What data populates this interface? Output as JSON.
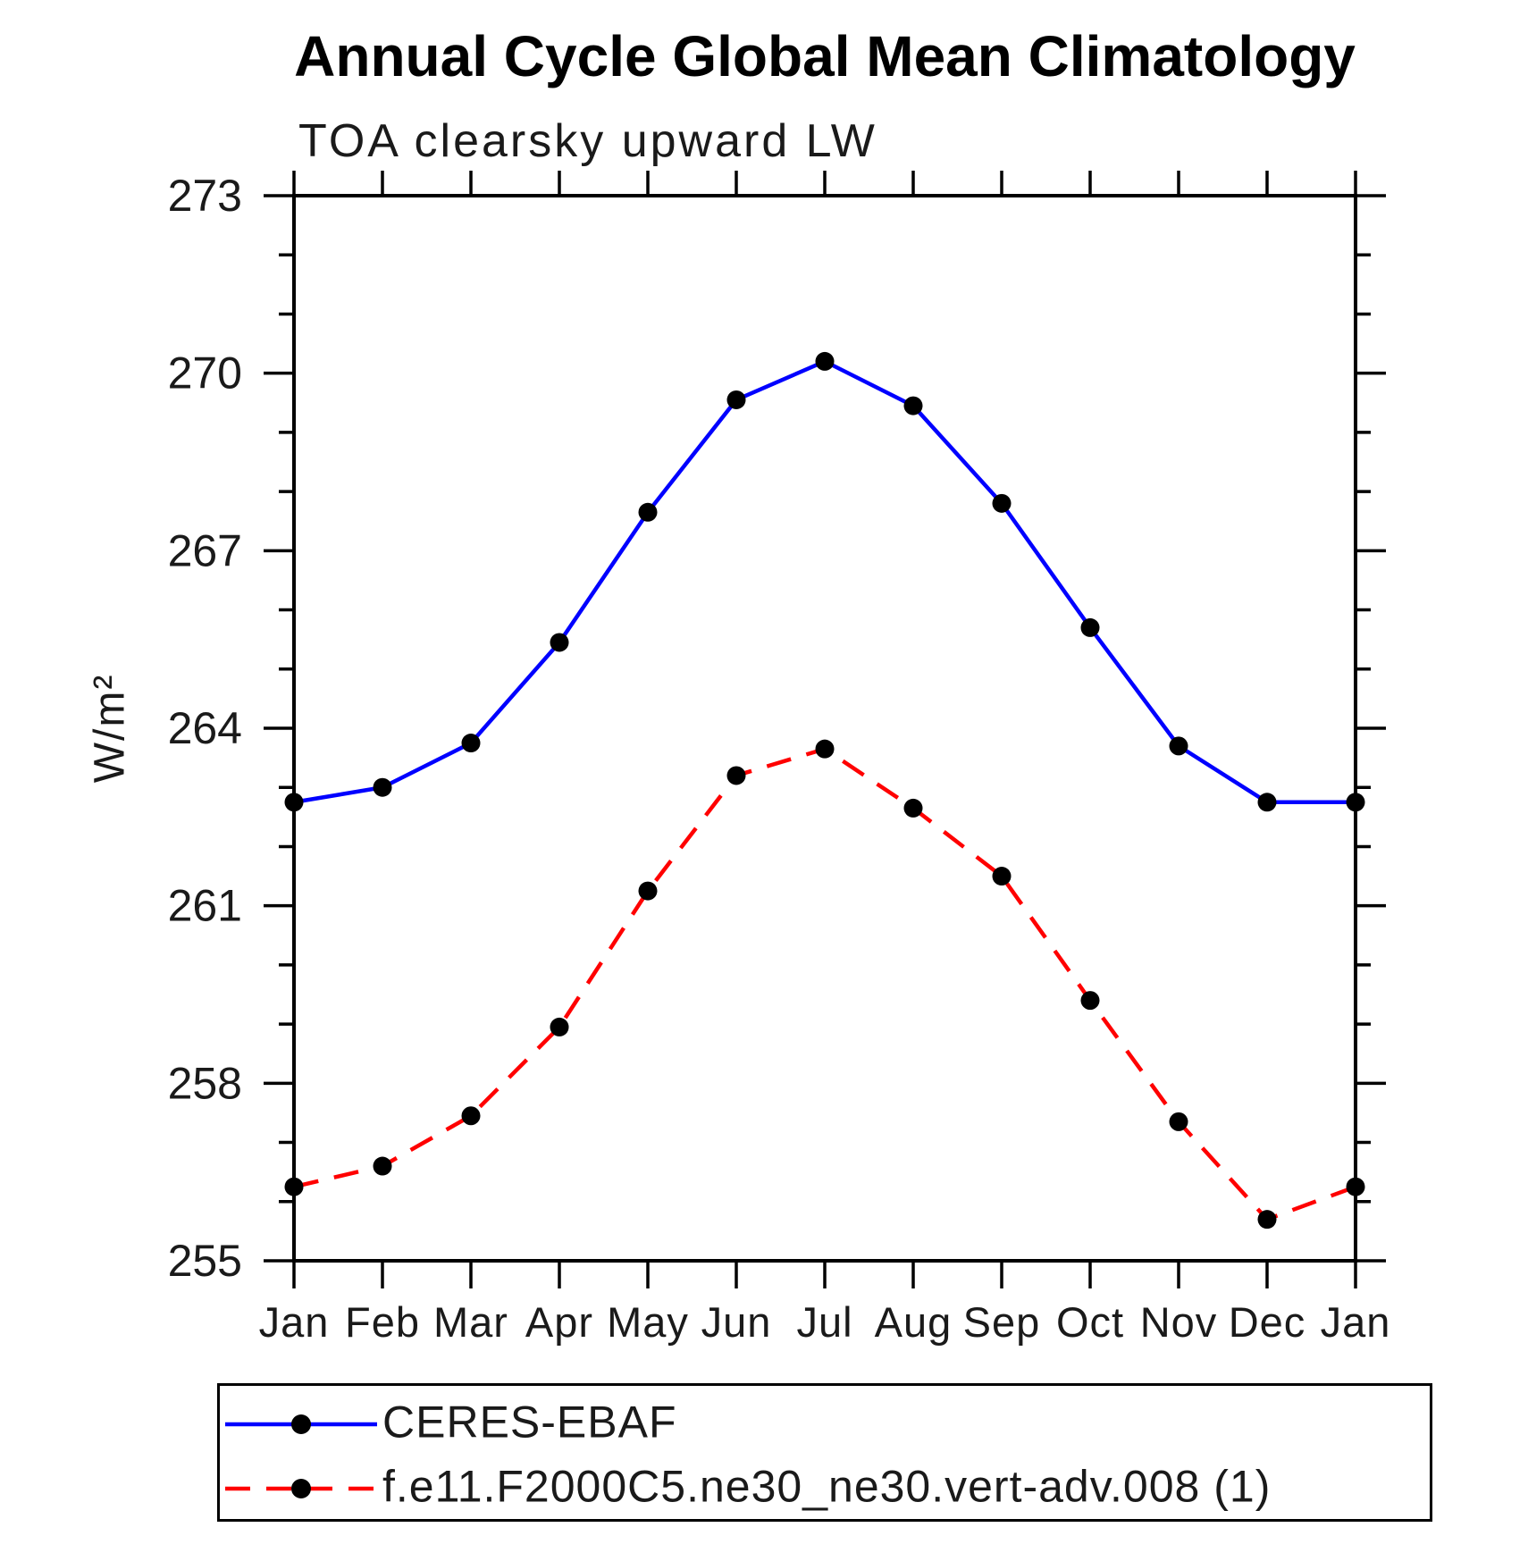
{
  "chart_data": {
    "type": "line",
    "title": "Annual Cycle Global Mean Climatology",
    "subtitle": "TOA clearsky upward LW",
    "ylabel": "W/m²",
    "categories": [
      "Jan",
      "Feb",
      "Mar",
      "Apr",
      "May",
      "Jun",
      "Jul",
      "Aug",
      "Sep",
      "Oct",
      "Nov",
      "Dec",
      "Jan"
    ],
    "ylim": [
      255,
      273
    ],
    "yticks_major": [
      255,
      258,
      261,
      264,
      267,
      270,
      273
    ],
    "minor_tick_step": 1,
    "grid": false,
    "legend_position": "bottom",
    "axis_color": "#000000",
    "series": [
      {
        "name": "CERES-EBAF",
        "color": "#0000ff",
        "line_style": "solid",
        "marker": "circle",
        "marker_color": "#000000",
        "values": [
          262.75,
          263.0,
          263.75,
          265.45,
          267.65,
          269.55,
          270.2,
          269.45,
          267.8,
          265.7,
          263.7,
          262.75,
          262.75
        ]
      },
      {
        "name": "f.e11.F2000C5.ne30_ne30.vert-adv.008 (1)",
        "color": "#ff0000",
        "line_style": "dashed",
        "marker": "circle",
        "marker_color": "#000000",
        "values": [
          256.25,
          256.6,
          257.45,
          258.95,
          261.25,
          263.2,
          263.65,
          262.65,
          261.5,
          259.4,
          257.35,
          255.7,
          256.25
        ]
      }
    ]
  }
}
